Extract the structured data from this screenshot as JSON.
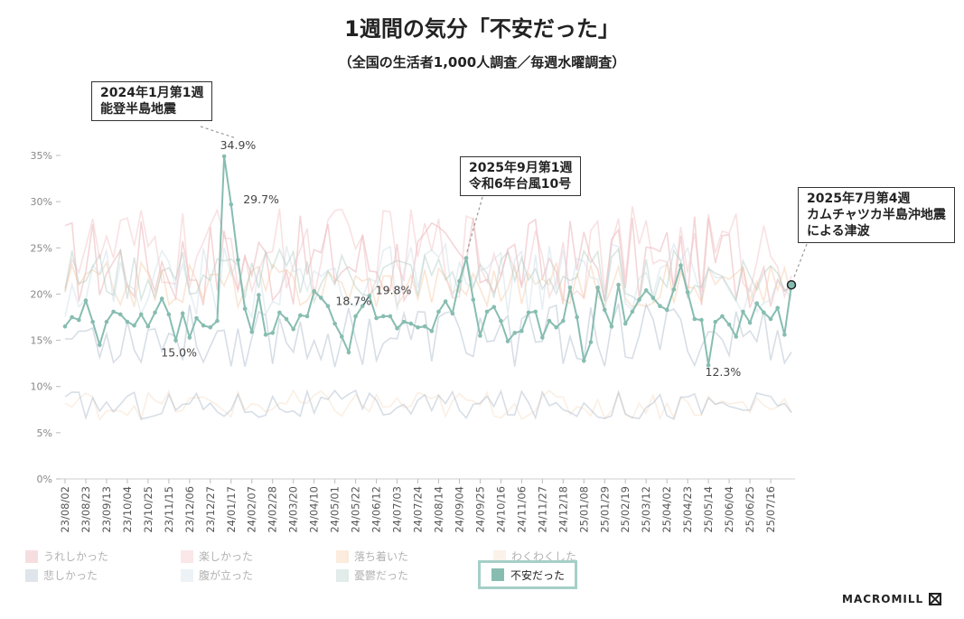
{
  "title": "1週間の気分「不安だった」",
  "subtitle": "（全国の生活者1,000人調査／毎週水曜調査）",
  "brand": "MACROMILL",
  "callouts": [
    {
      "lines": [
        "2024年1月第1週",
        "能登半島地震"
      ]
    },
    {
      "lines": [
        "2025年9月第1週",
        "令和6年台風10号"
      ]
    },
    {
      "lines": [
        "2025年7月第4週",
        "カムチャツカ半島沖地震",
        "による津波"
      ]
    }
  ],
  "chart_data": {
    "type": "line",
    "y_ticks": [
      "0%",
      "5%",
      "10%",
      "15%",
      "20%",
      "25%",
      "30%",
      "35%"
    ],
    "ylim": [
      0,
      35
    ],
    "x_tick_labels": [
      "23/08/02",
      "23/08/23",
      "23/09/13",
      "23/10/04",
      "23/10/25",
      "23/11/15",
      "23/12/06",
      "23/12/27",
      "24/01/17",
      "24/02/07",
      "24/02/28",
      "24/03/20",
      "24/04/10",
      "24/05/01",
      "24/05/22",
      "24/06/12",
      "24/07/03",
      "24/07/24",
      "24/08/14",
      "24/09/04",
      "24/09/25",
      "24/10/16",
      "24/11/06",
      "24/11/27",
      "24/12/18",
      "25/01/08",
      "25/01/29",
      "25/02/19",
      "25/03/12",
      "25/04/02",
      "25/04/23",
      "25/05/14",
      "25/06/04",
      "25/06/25",
      "25/07/16"
    ],
    "legend": [
      {
        "label": "うれしかった",
        "color": "#e6a3a8",
        "active": false
      },
      {
        "label": "楽しかった",
        "color": "#f2bcc0",
        "active": false
      },
      {
        "label": "落ち着いた",
        "color": "#f4c8a0",
        "active": false
      },
      {
        "label": "わくわくした",
        "color": "#f6dcc2",
        "active": false
      },
      {
        "label": "悲しかった",
        "color": "#a7b6c8",
        "active": false
      },
      {
        "label": "腹が立った",
        "color": "#c9dce6",
        "active": false
      },
      {
        "label": "憂鬱だった",
        "color": "#acc9c2",
        "active": false
      },
      {
        "label": "不安だった",
        "color": "#87bdb1",
        "active": true
      }
    ],
    "annotations": [
      {
        "label": "34.9%",
        "index": 25,
        "value": 34.9
      },
      {
        "label": "29.7%",
        "index": 26,
        "value": 29.7
      },
      {
        "label": "15.0%",
        "index": 17,
        "value": 15.0
      },
      {
        "label": "18.7%",
        "index": 43,
        "value": 18.7
      },
      {
        "label": "19.8%",
        "index": 48,
        "value": 19.8
      },
      {
        "label": "12.3%",
        "index": 98,
        "value": 12.3
      }
    ],
    "series": [
      {
        "legend_index": 7,
        "values": [
          16.5,
          17.5,
          17.2,
          19.3,
          17.0,
          14.5,
          17.0,
          18.1,
          17.8,
          17.0,
          16.6,
          17.8,
          16.5,
          18.0,
          19.5,
          17.8,
          15.0,
          17.9,
          15.3,
          17.4,
          16.6,
          16.4,
          17.1,
          34.9,
          29.7,
          23.7,
          18.4,
          15.9,
          19.9,
          15.6,
          15.8,
          18.0,
          17.3,
          16.2,
          17.7,
          17.6,
          20.3,
          19.6,
          18.7,
          16.8,
          15.4,
          13.7,
          17.6,
          18.7,
          19.8,
          17.4,
          17.6,
          17.6,
          16.3,
          17.0,
          16.8,
          16.4,
          16.5,
          16.0,
          18.1,
          19.2,
          17.9,
          21.4,
          23.9,
          19.4,
          15.5,
          18.1,
          18.6,
          17.1,
          14.9,
          15.8,
          16.0,
          18.0,
          18.1,
          15.3,
          17.1,
          16.4,
          17.1,
          20.7,
          17.5,
          12.8,
          14.8,
          20.7,
          18.3,
          16.5,
          21.0,
          16.8,
          18.1,
          19.4,
          20.4,
          19.6,
          18.7,
          18.3,
          20.5,
          23.1,
          20.2,
          17.3,
          17.2,
          12.3,
          17.0,
          17.6,
          16.7,
          15.4,
          18.1,
          16.9,
          19.0,
          18.0,
          17.3,
          18.5,
          15.6,
          21.0
        ]
      }
    ]
  }
}
